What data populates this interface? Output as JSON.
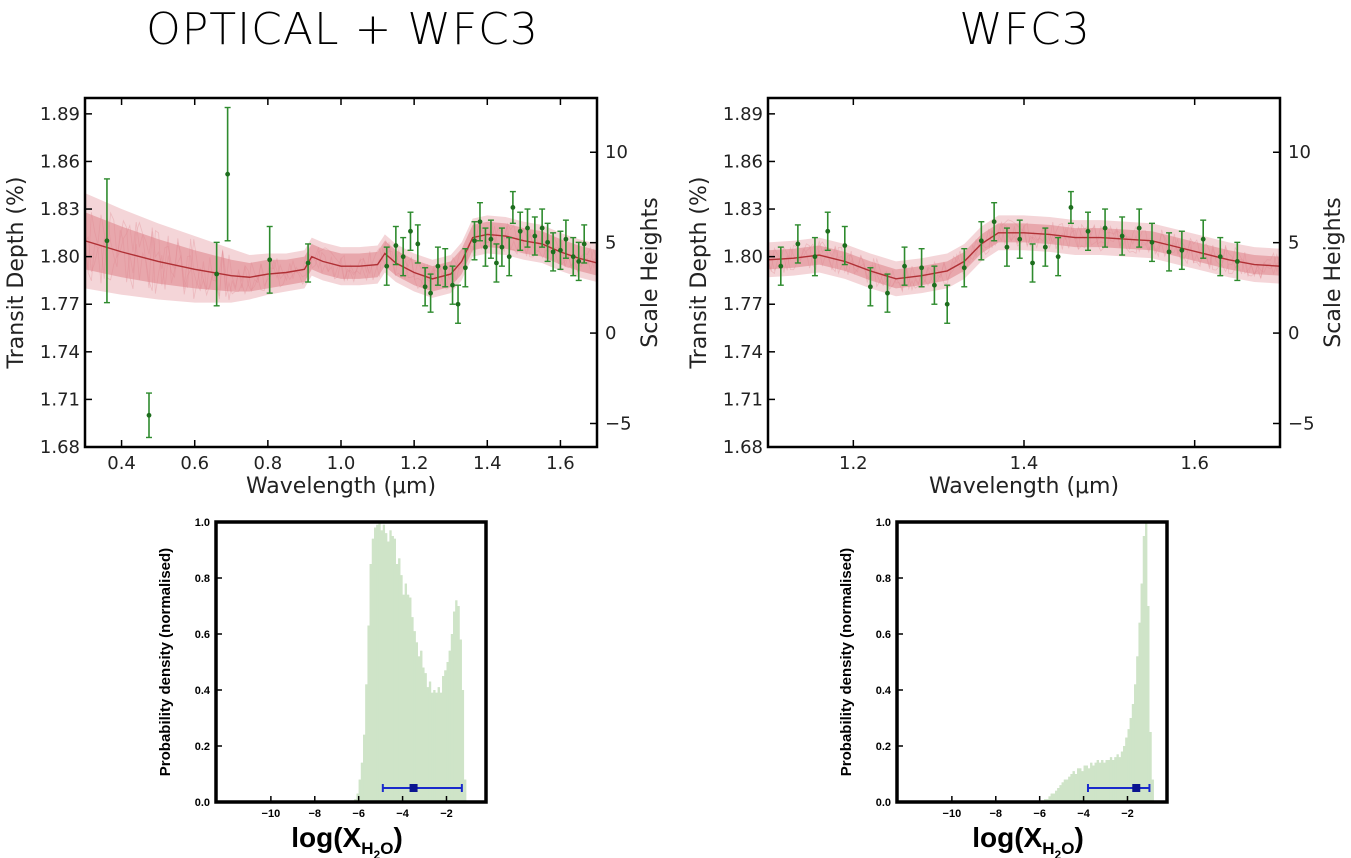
{
  "panels": {
    "left_title": "OPTICAL + WFC3",
    "right_title": "WFC3"
  },
  "chart_data": [
    {
      "id": "spectrum-optical-wfc3",
      "type": "scatter",
      "title": "OPTICAL + WFC3",
      "xlabel": "Wavelength (μm)",
      "ylabel": "Transit Depth (%)",
      "y2label": "Scale Heights",
      "xlim": [
        0.3,
        1.7
      ],
      "ylim": [
        1.68,
        1.9
      ],
      "y2lim": [
        -6.3,
        13.0
      ],
      "xticks": [
        0.4,
        0.6,
        0.8,
        1.0,
        1.2,
        1.4,
        1.6
      ],
      "xtick_labels": [
        "0.4",
        "0.6",
        "0.8",
        "1.0",
        "1.2",
        "1.4",
        "1.6"
      ],
      "yticks": [
        1.68,
        1.71,
        1.74,
        1.77,
        1.8,
        1.83,
        1.86,
        1.89
      ],
      "ytick_labels": [
        "1.68",
        "1.71",
        "1.74",
        "1.77",
        "1.80",
        "1.83",
        "1.86",
        "1.89"
      ],
      "y2ticks": [
        -5,
        0,
        5,
        10
      ],
      "y2tick_labels": [
        "−5",
        "0",
        "5",
        "10"
      ],
      "model_color": "#b03035",
      "band_color": "#e08890",
      "data_color": "#2e8b2e",
      "model": {
        "x": [
          0.3,
          0.4,
          0.5,
          0.6,
          0.7,
          0.75,
          0.8,
          0.85,
          0.9,
          0.92,
          0.95,
          1.0,
          1.05,
          1.1,
          1.12,
          1.15,
          1.2,
          1.25,
          1.3,
          1.33,
          1.36,
          1.4,
          1.45,
          1.5,
          1.55,
          1.6,
          1.65,
          1.7
        ],
        "y": [
          1.81,
          1.803,
          1.797,
          1.792,
          1.788,
          1.787,
          1.789,
          1.79,
          1.792,
          1.8,
          1.797,
          1.794,
          1.794,
          1.795,
          1.802,
          1.796,
          1.79,
          1.786,
          1.789,
          1.797,
          1.812,
          1.814,
          1.813,
          1.81,
          1.808,
          1.803,
          1.799,
          1.796
        ],
        "band1": [
          0.018,
          0.016,
          0.014,
          0.012,
          0.01,
          0.009,
          0.009,
          0.008,
          0.008,
          0.008,
          0.008,
          0.008,
          0.008,
          0.008,
          0.008,
          0.008,
          0.008,
          0.008,
          0.008,
          0.008,
          0.008,
          0.008,
          0.008,
          0.008,
          0.008,
          0.008,
          0.008,
          0.008
        ],
        "band2": [
          0.03,
          0.027,
          0.024,
          0.021,
          0.017,
          0.014,
          0.013,
          0.012,
          0.012,
          0.012,
          0.012,
          0.012,
          0.012,
          0.012,
          0.012,
          0.012,
          0.012,
          0.012,
          0.012,
          0.012,
          0.012,
          0.012,
          0.012,
          0.012,
          0.012,
          0.012,
          0.012,
          0.012
        ]
      },
      "points": [
        {
          "x": 0.36,
          "y": 1.81,
          "err": 0.039
        },
        {
          "x": 0.475,
          "y": 1.7,
          "err": 0.014
        },
        {
          "x": 0.66,
          "y": 1.789,
          "err": 0.02
        },
        {
          "x": 0.69,
          "y": 1.852,
          "err": 0.042
        },
        {
          "x": 0.805,
          "y": 1.798,
          "err": 0.021
        },
        {
          "x": 0.91,
          "y": 1.796,
          "err": 0.012
        },
        {
          "x": 1.125,
          "y": 1.794,
          "err": 0.012
        },
        {
          "x": 1.15,
          "y": 1.807,
          "err": 0.012
        },
        {
          "x": 1.17,
          "y": 1.8,
          "err": 0.012
        },
        {
          "x": 1.19,
          "y": 1.816,
          "err": 0.012
        },
        {
          "x": 1.21,
          "y": 1.808,
          "err": 0.012
        },
        {
          "x": 1.23,
          "y": 1.781,
          "err": 0.012
        },
        {
          "x": 1.245,
          "y": 1.777,
          "err": 0.012
        },
        {
          "x": 1.265,
          "y": 1.794,
          "err": 0.012
        },
        {
          "x": 1.285,
          "y": 1.793,
          "err": 0.012
        },
        {
          "x": 1.305,
          "y": 1.782,
          "err": 0.012
        },
        {
          "x": 1.32,
          "y": 1.77,
          "err": 0.012
        },
        {
          "x": 1.34,
          "y": 1.793,
          "err": 0.012
        },
        {
          "x": 1.365,
          "y": 1.81,
          "err": 0.012
        },
        {
          "x": 1.38,
          "y": 1.822,
          "err": 0.012
        },
        {
          "x": 1.395,
          "y": 1.806,
          "err": 0.012
        },
        {
          "x": 1.41,
          "y": 1.811,
          "err": 0.012
        },
        {
          "x": 1.425,
          "y": 1.796,
          "err": 0.012
        },
        {
          "x": 1.44,
          "y": 1.806,
          "err": 0.012
        },
        {
          "x": 1.46,
          "y": 1.8,
          "err": 0.012
        },
        {
          "x": 1.47,
          "y": 1.831,
          "err": 0.01
        },
        {
          "x": 1.49,
          "y": 1.816,
          "err": 0.012
        },
        {
          "x": 1.51,
          "y": 1.818,
          "err": 0.012
        },
        {
          "x": 1.53,
          "y": 1.813,
          "err": 0.012
        },
        {
          "x": 1.55,
          "y": 1.818,
          "err": 0.012
        },
        {
          "x": 1.565,
          "y": 1.809,
          "err": 0.012
        },
        {
          "x": 1.58,
          "y": 1.803,
          "err": 0.012
        },
        {
          "x": 1.6,
          "y": 1.804,
          "err": 0.012
        },
        {
          "x": 1.615,
          "y": 1.811,
          "err": 0.012
        },
        {
          "x": 1.635,
          "y": 1.8,
          "err": 0.012
        },
        {
          "x": 1.65,
          "y": 1.797,
          "err": 0.012
        },
        {
          "x": 1.665,
          "y": 1.808,
          "err": 0.012
        }
      ]
    },
    {
      "id": "spectrum-wfc3",
      "type": "scatter",
      "title": "WFC3",
      "xlabel": "Wavelength (μm)",
      "ylabel": "Transit Depth (%)",
      "y2label": "Scale Heights",
      "xlim": [
        1.1,
        1.7
      ],
      "ylim": [
        1.68,
        1.9
      ],
      "y2lim": [
        -6.3,
        13.0
      ],
      "xticks": [
        1.2,
        1.4,
        1.6
      ],
      "xtick_labels": [
        "1.2",
        "1.4",
        "1.6"
      ],
      "yticks": [
        1.68,
        1.71,
        1.74,
        1.77,
        1.8,
        1.83,
        1.86,
        1.89
      ],
      "ytick_labels": [
        "1.68",
        "1.71",
        "1.74",
        "1.77",
        "1.80",
        "1.83",
        "1.86",
        "1.89"
      ],
      "y2ticks": [
        -5,
        0,
        5,
        10
      ],
      "y2tick_labels": [
        "−5",
        "0",
        "5",
        "10"
      ],
      "model_color": "#b03035",
      "band_color": "#e08890",
      "data_color": "#2e8b2e",
      "model": {
        "x": [
          1.1,
          1.13,
          1.16,
          1.19,
          1.22,
          1.25,
          1.28,
          1.31,
          1.33,
          1.35,
          1.37,
          1.4,
          1.43,
          1.46,
          1.49,
          1.52,
          1.55,
          1.58,
          1.61,
          1.64,
          1.67,
          1.7
        ],
        "y": [
          1.798,
          1.799,
          1.801,
          1.797,
          1.791,
          1.786,
          1.788,
          1.791,
          1.797,
          1.808,
          1.815,
          1.815,
          1.814,
          1.812,
          1.812,
          1.811,
          1.81,
          1.806,
          1.802,
          1.798,
          1.795,
          1.794
        ],
        "band1": [
          0.006,
          0.006,
          0.006,
          0.006,
          0.006,
          0.006,
          0.006,
          0.006,
          0.006,
          0.006,
          0.006,
          0.006,
          0.006,
          0.006,
          0.006,
          0.006,
          0.006,
          0.006,
          0.006,
          0.006,
          0.006,
          0.006
        ],
        "band2": [
          0.011,
          0.011,
          0.011,
          0.011,
          0.011,
          0.011,
          0.011,
          0.011,
          0.011,
          0.011,
          0.011,
          0.011,
          0.011,
          0.011,
          0.011,
          0.011,
          0.011,
          0.011,
          0.011,
          0.011,
          0.011,
          0.011
        ]
      },
      "points": [
        {
          "x": 1.115,
          "y": 1.794,
          "err": 0.012
        },
        {
          "x": 1.135,
          "y": 1.808,
          "err": 0.012
        },
        {
          "x": 1.155,
          "y": 1.8,
          "err": 0.012
        },
        {
          "x": 1.17,
          "y": 1.816,
          "err": 0.012
        },
        {
          "x": 1.19,
          "y": 1.807,
          "err": 0.012
        },
        {
          "x": 1.22,
          "y": 1.781,
          "err": 0.012
        },
        {
          "x": 1.24,
          "y": 1.777,
          "err": 0.012
        },
        {
          "x": 1.26,
          "y": 1.794,
          "err": 0.012
        },
        {
          "x": 1.28,
          "y": 1.793,
          "err": 0.012
        },
        {
          "x": 1.295,
          "y": 1.782,
          "err": 0.012
        },
        {
          "x": 1.31,
          "y": 1.77,
          "err": 0.012
        },
        {
          "x": 1.33,
          "y": 1.793,
          "err": 0.012
        },
        {
          "x": 1.35,
          "y": 1.81,
          "err": 0.012
        },
        {
          "x": 1.365,
          "y": 1.822,
          "err": 0.012
        },
        {
          "x": 1.38,
          "y": 1.806,
          "err": 0.012
        },
        {
          "x": 1.395,
          "y": 1.811,
          "err": 0.012
        },
        {
          "x": 1.41,
          "y": 1.796,
          "err": 0.012
        },
        {
          "x": 1.425,
          "y": 1.806,
          "err": 0.012
        },
        {
          "x": 1.44,
          "y": 1.8,
          "err": 0.012
        },
        {
          "x": 1.455,
          "y": 1.831,
          "err": 0.01
        },
        {
          "x": 1.475,
          "y": 1.816,
          "err": 0.012
        },
        {
          "x": 1.495,
          "y": 1.818,
          "err": 0.012
        },
        {
          "x": 1.515,
          "y": 1.813,
          "err": 0.012
        },
        {
          "x": 1.535,
          "y": 1.818,
          "err": 0.012
        },
        {
          "x": 1.55,
          "y": 1.809,
          "err": 0.012
        },
        {
          "x": 1.57,
          "y": 1.803,
          "err": 0.012
        },
        {
          "x": 1.585,
          "y": 1.804,
          "err": 0.012
        },
        {
          "x": 1.61,
          "y": 1.811,
          "err": 0.012
        },
        {
          "x": 1.63,
          "y": 1.8,
          "err": 0.012
        },
        {
          "x": 1.65,
          "y": 1.797,
          "err": 0.012
        }
      ]
    },
    {
      "id": "hist-optical-wfc3",
      "type": "bar",
      "xlabel_main": "log(X",
      "xlabel_sub1": "H",
      "xlabel_sub2": "2",
      "xlabel_sub3": "O",
      "xlabel_close": ")",
      "ylabel": "Probability density (normalised)",
      "xlim": [
        -12.5,
        -0.2
      ],
      "ylim": [
        0,
        1.0
      ],
      "xticks": [
        -10,
        -8,
        -6,
        -4,
        -2
      ],
      "xtick_labels": [
        "−10",
        "−8",
        "−6",
        "−4",
        "−2"
      ],
      "yticks": [
        0.0,
        0.2,
        0.4,
        0.6,
        0.8,
        1.0
      ],
      "ytick_labels": [
        "0.0",
        "0.2",
        "0.4",
        "0.6",
        "0.8",
        "1.0"
      ],
      "fill_color": "#cfe4c8",
      "marker_color": "#1a2acc",
      "bin_start": -6.2,
      "bin_width": 0.1,
      "values": [
        0.01,
        0.03,
        0.08,
        0.14,
        0.24,
        0.42,
        0.63,
        0.85,
        0.94,
        0.98,
        0.99,
        1.0,
        0.97,
        0.99,
        0.96,
        0.93,
        0.97,
        0.95,
        0.94,
        0.85,
        0.87,
        0.81,
        0.74,
        0.78,
        0.74,
        0.73,
        0.66,
        0.61,
        0.57,
        0.52,
        0.54,
        0.48,
        0.46,
        0.41,
        0.43,
        0.39,
        0.4,
        0.39,
        0.41,
        0.39,
        0.45,
        0.47,
        0.5,
        0.54,
        0.6,
        0.68,
        0.72,
        0.7,
        0.58,
        0.4,
        0.08
      ],
      "median": -3.5,
      "err_low": -4.9,
      "err_high": -1.3,
      "marker_y": 0.05
    },
    {
      "id": "hist-wfc3",
      "type": "bar",
      "xlabel_main": "log(X",
      "xlabel_sub1": "H",
      "xlabel_sub2": "2",
      "xlabel_sub3": "O",
      "xlabel_close": ")",
      "ylabel": "Probability density (normalised)",
      "xlim": [
        -12.5,
        -0.2
      ],
      "ylim": [
        0,
        1.0
      ],
      "xticks": [
        -10,
        -8,
        -6,
        -4,
        -2
      ],
      "xtick_labels": [
        "−10",
        "−8",
        "−6",
        "−4",
        "−2"
      ],
      "yticks": [
        0.0,
        0.2,
        0.4,
        0.6,
        0.8,
        1.0
      ],
      "ytick_labels": [
        "0.0",
        "0.2",
        "0.4",
        "0.6",
        "0.8",
        "1.0"
      ],
      "fill_color": "#cfe4c8",
      "marker_color": "#1a2acc",
      "bin_start": -6.0,
      "bin_width": 0.1,
      "values": [
        0.0,
        0.0,
        0.01,
        0.01,
        0.02,
        0.03,
        0.03,
        0.04,
        0.05,
        0.06,
        0.07,
        0.08,
        0.08,
        0.09,
        0.1,
        0.11,
        0.1,
        0.12,
        0.12,
        0.11,
        0.13,
        0.13,
        0.12,
        0.14,
        0.13,
        0.14,
        0.15,
        0.14,
        0.15,
        0.14,
        0.15,
        0.15,
        0.16,
        0.15,
        0.16,
        0.17,
        0.16,
        0.18,
        0.2,
        0.23,
        0.26,
        0.3,
        0.35,
        0.42,
        0.52,
        0.64,
        0.78,
        0.95,
        1.0,
        0.7,
        0.25,
        0.08
      ],
      "median": -1.6,
      "err_low": -3.8,
      "err_high": -1.0,
      "marker_y": 0.05
    }
  ]
}
